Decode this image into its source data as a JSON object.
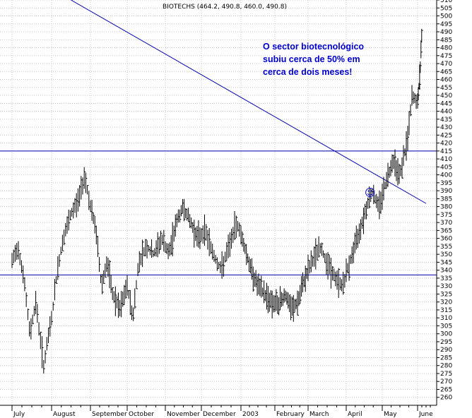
{
  "colors": {
    "price": "#000000",
    "lines": "#0000aa",
    "annotation": "#0000cc",
    "grid": "#c8c8c8"
  },
  "chart_data": {
    "type": "line",
    "title": "BIOTECHS (464.2, 490.8, 460.0, 490.8)",
    "annotation": [
      "O sector biotecnológico",
      "subiu cerca de 50%  em",
      "cerca de dois meses!"
    ],
    "smiley": "☺",
    "ylim": [
      255,
      510
    ],
    "ytick_step": 5,
    "x_months": [
      "July",
      "August",
      "September",
      "October",
      "November",
      "December",
      "2003",
      "February",
      "March",
      "April",
      "May",
      "June"
    ],
    "support_level": 337,
    "resistance_level": 415,
    "trendline": [
      {
        "month_pos": 1.5,
        "value": 510
      },
      {
        "month_pos": 11.5,
        "value": 382
      }
    ],
    "series": [
      {
        "points": [
          {
            "m": 0.0,
            "v": 345
          },
          {
            "m": 0.15,
            "v": 355
          },
          {
            "m": 0.3,
            "v": 335
          },
          {
            "m": 0.45,
            "v": 300
          },
          {
            "m": 0.6,
            "v": 320
          },
          {
            "m": 0.8,
            "v": 280
          },
          {
            "m": 1.0,
            "v": 310
          },
          {
            "m": 1.15,
            "v": 340
          },
          {
            "m": 1.3,
            "v": 360
          },
          {
            "m": 1.5,
            "v": 375
          },
          {
            "m": 1.7,
            "v": 385
          },
          {
            "m": 1.85,
            "v": 400
          },
          {
            "m": 2.0,
            "v": 380
          },
          {
            "m": 2.15,
            "v": 365
          },
          {
            "m": 2.3,
            "v": 330
          },
          {
            "m": 2.45,
            "v": 345
          },
          {
            "m": 2.6,
            "v": 325
          },
          {
            "m": 2.8,
            "v": 315
          },
          {
            "m": 3.0,
            "v": 330
          },
          {
            "m": 3.15,
            "v": 310
          },
          {
            "m": 3.3,
            "v": 345
          },
          {
            "m": 3.5,
            "v": 355
          },
          {
            "m": 3.7,
            "v": 350
          },
          {
            "m": 3.9,
            "v": 360
          },
          {
            "m": 4.1,
            "v": 350
          },
          {
            "m": 4.3,
            "v": 370
          },
          {
            "m": 4.5,
            "v": 380
          },
          {
            "m": 4.7,
            "v": 370
          },
          {
            "m": 4.9,
            "v": 360
          },
          {
            "m": 5.1,
            "v": 365
          },
          {
            "m": 5.3,
            "v": 350
          },
          {
            "m": 5.5,
            "v": 340
          },
          {
            "m": 5.7,
            "v": 355
          },
          {
            "m": 5.9,
            "v": 370
          },
          {
            "m": 6.1,
            "v": 355
          },
          {
            "m": 6.3,
            "v": 340
          },
          {
            "m": 6.5,
            "v": 330
          },
          {
            "m": 6.7,
            "v": 325
          },
          {
            "m": 6.9,
            "v": 320
          },
          {
            "m": 7.1,
            "v": 318
          },
          {
            "m": 7.3,
            "v": 325
          },
          {
            "m": 7.5,
            "v": 315
          },
          {
            "m": 7.7,
            "v": 320
          },
          {
            "m": 7.9,
            "v": 335
          },
          {
            "m": 8.1,
            "v": 345
          },
          {
            "m": 8.3,
            "v": 355
          },
          {
            "m": 8.5,
            "v": 345
          },
          {
            "m": 8.7,
            "v": 335
          },
          {
            "m": 8.9,
            "v": 330
          },
          {
            "m": 9.1,
            "v": 345
          },
          {
            "m": 9.3,
            "v": 360
          },
          {
            "m": 9.5,
            "v": 375
          },
          {
            "m": 9.7,
            "v": 390
          },
          {
            "m": 9.9,
            "v": 380
          },
          {
            "m": 10.1,
            "v": 395
          },
          {
            "m": 10.3,
            "v": 410
          },
          {
            "m": 10.5,
            "v": 400
          },
          {
            "m": 10.7,
            "v": 420
          },
          {
            "m": 10.85,
            "v": 450
          },
          {
            "m": 11.0,
            "v": 445
          },
          {
            "m": 11.15,
            "v": 465
          },
          {
            "m": 11.25,
            "v": 490
          }
        ]
      }
    ]
  }
}
